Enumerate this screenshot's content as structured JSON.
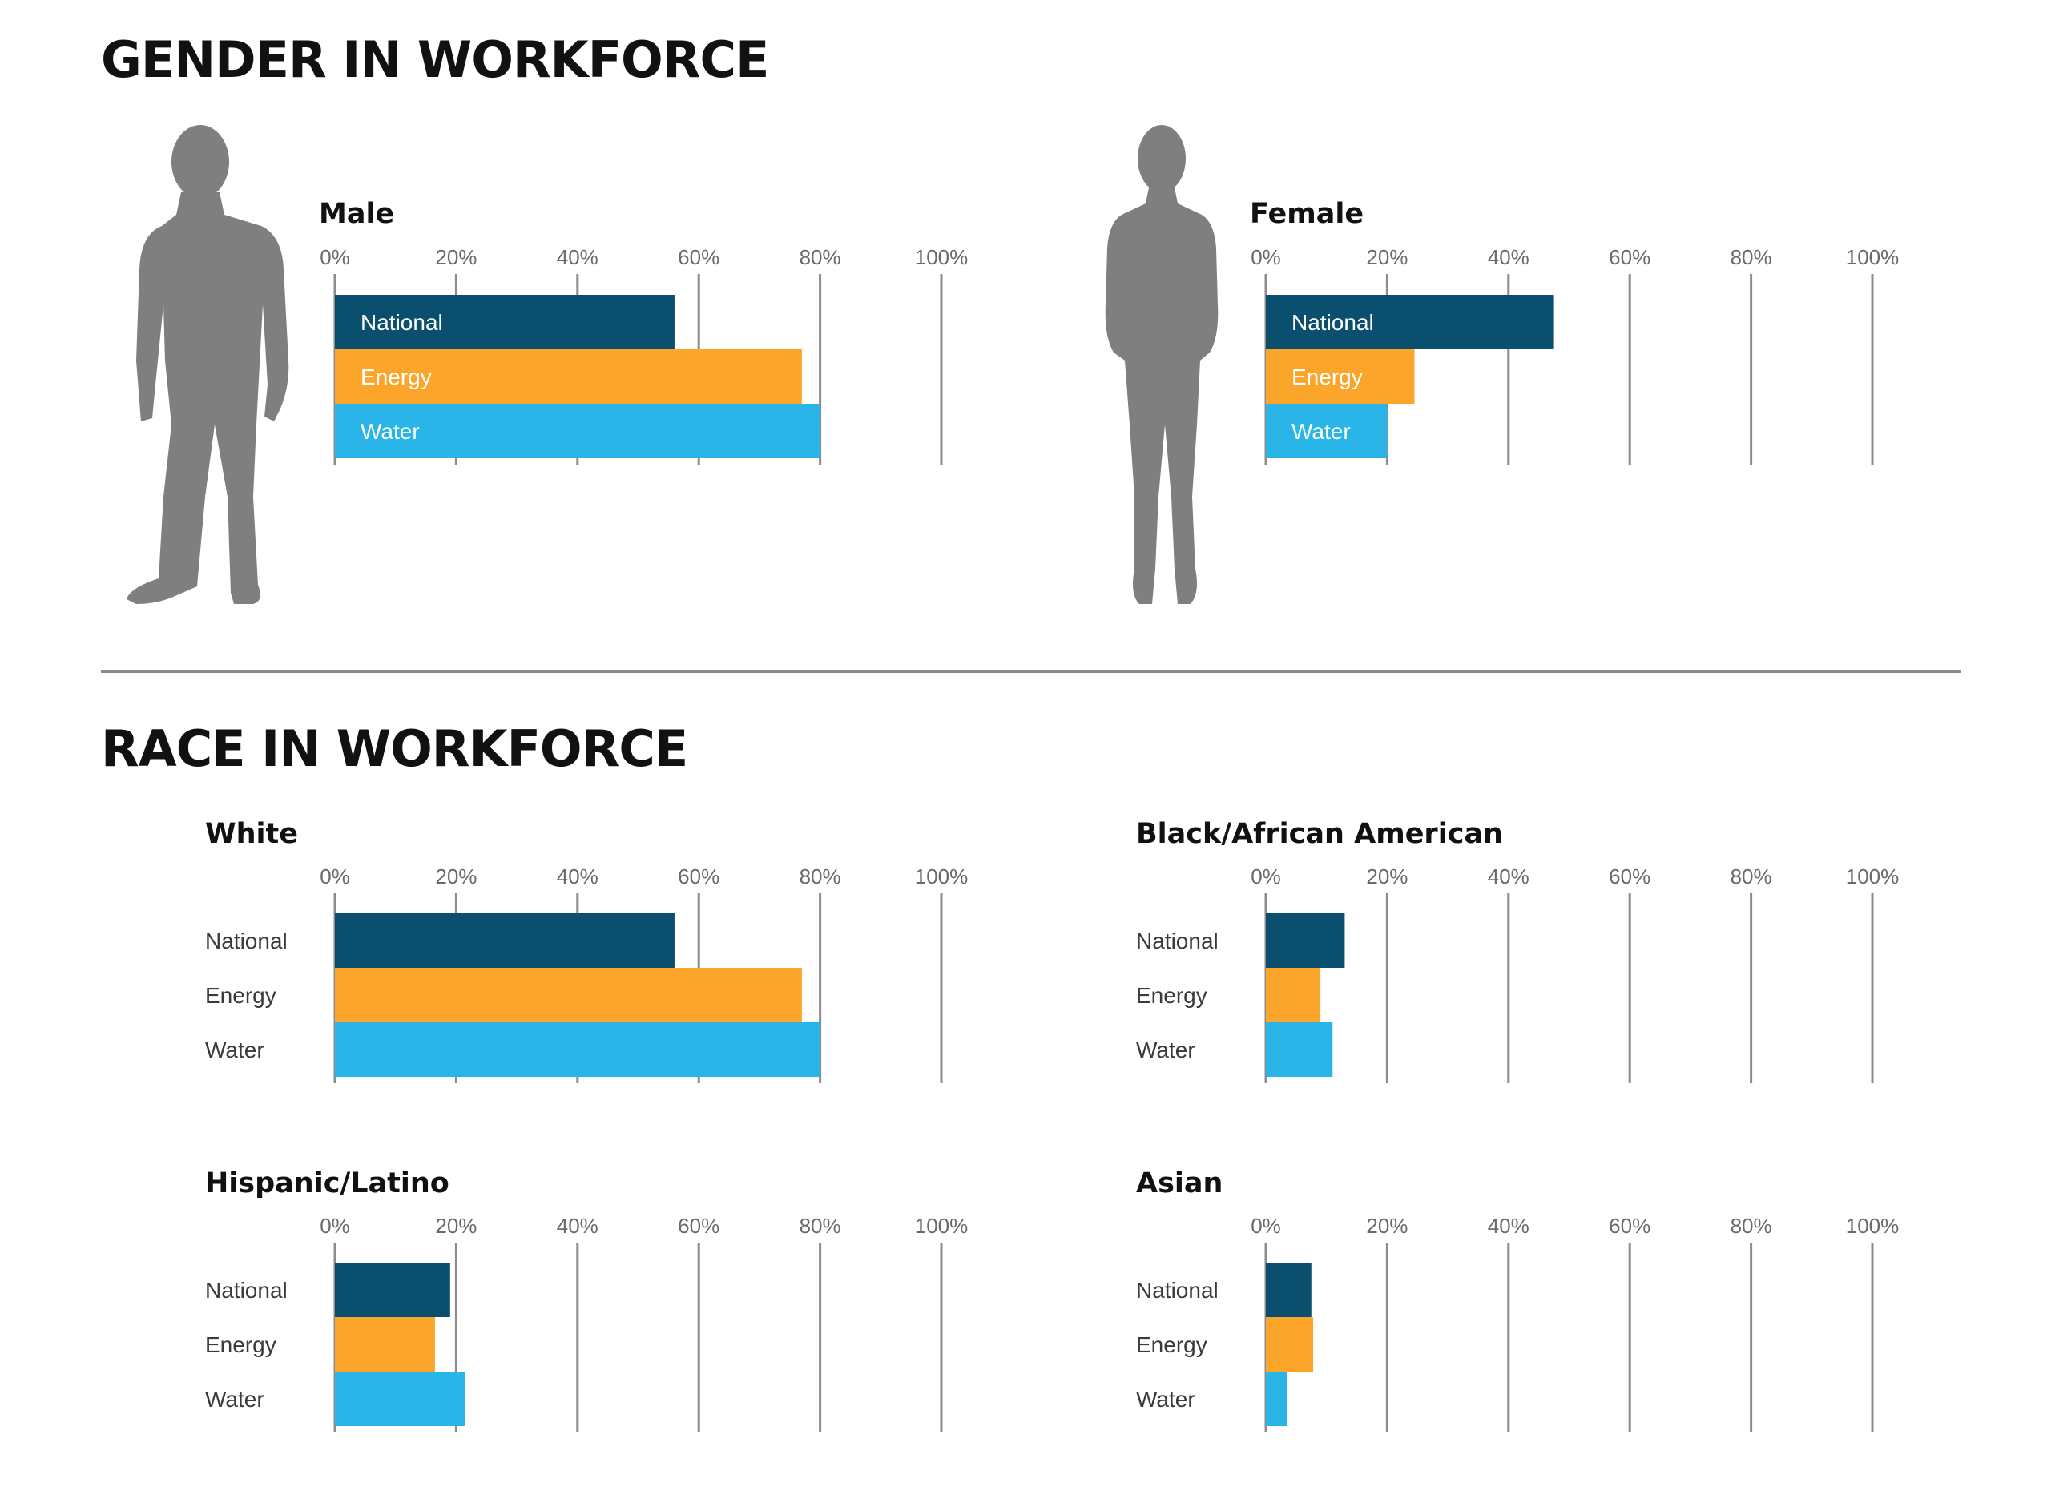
{
  "gender_section": {
    "title": "GENDER IN WORKFORCE"
  },
  "race_section": {
    "title": "RACE IN WORKFORCE"
  },
  "colors": {
    "National": "#0a4f6e",
    "Energy": "#fba62b",
    "Water": "#29b5e8",
    "grid": "#8c8c8c",
    "silhouette": "#7f7f80"
  },
  "icons": {
    "male": "male-figure-silhouette-icon",
    "female": "female-figure-silhouette-icon"
  },
  "chart_data": [
    {
      "type": "bar",
      "orientation": "horizontal",
      "title": "Male",
      "label_style": "inside",
      "xlim": [
        0,
        100
      ],
      "xticks": [
        "0%",
        "20%",
        "40%",
        "60%",
        "80%",
        "100%"
      ],
      "categories": [
        "National",
        "Energy",
        "Water"
      ],
      "values": [
        56,
        77,
        80
      ]
    },
    {
      "type": "bar",
      "orientation": "horizontal",
      "title": "Female",
      "label_style": "inside",
      "xlim": [
        0,
        100
      ],
      "xticks": [
        "0%",
        "20%",
        "40%",
        "60%",
        "80%",
        "100%"
      ],
      "categories": [
        "National",
        "Energy",
        "Water"
      ],
      "values": [
        47.5,
        24.5,
        20
      ]
    },
    {
      "type": "bar",
      "orientation": "horizontal",
      "title": "White",
      "label_style": "outside",
      "xlim": [
        0,
        100
      ],
      "xticks": [
        "0%",
        "20%",
        "40%",
        "60%",
        "80%",
        "100%"
      ],
      "categories": [
        "National",
        "Energy",
        "Water"
      ],
      "values": [
        56,
        77,
        80
      ]
    },
    {
      "type": "bar",
      "orientation": "horizontal",
      "title": "Black/African American",
      "label_style": "outside",
      "xlim": [
        0,
        100
      ],
      "xticks": [
        "0%",
        "20%",
        "40%",
        "60%",
        "80%",
        "100%"
      ],
      "categories": [
        "National",
        "Energy",
        "Water"
      ],
      "values": [
        13,
        9,
        11
      ]
    },
    {
      "type": "bar",
      "orientation": "horizontal",
      "title": "Hispanic/Latino",
      "label_style": "outside",
      "xlim": [
        0,
        100
      ],
      "xticks": [
        "0%",
        "20%",
        "40%",
        "60%",
        "80%",
        "100%"
      ],
      "categories": [
        "National",
        "Energy",
        "Water"
      ],
      "values": [
        19,
        16.5,
        21.5
      ]
    },
    {
      "type": "bar",
      "orientation": "horizontal",
      "title": "Asian",
      "label_style": "outside",
      "xlim": [
        0,
        100
      ],
      "xticks": [
        "0%",
        "20%",
        "40%",
        "60%",
        "80%",
        "100%"
      ],
      "categories": [
        "National",
        "Energy",
        "Water"
      ],
      "values": [
        7.5,
        7.8,
        3.5
      ]
    }
  ]
}
